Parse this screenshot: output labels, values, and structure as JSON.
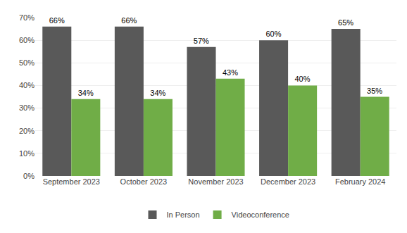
{
  "chart_data": {
    "type": "bar",
    "categories": [
      "September 2023",
      "October 2023",
      "November 2023",
      "December 2023",
      "February 2024"
    ],
    "series": [
      {
        "name": "In Person",
        "color": "#595959",
        "values": [
          0.66,
          0.66,
          0.57,
          0.6,
          0.65
        ],
        "value_labels": [
          "66%",
          "66%",
          "57%",
          "60%",
          "65%"
        ]
      },
      {
        "name": "Videoconference",
        "color": "#70ad47",
        "values": [
          0.34,
          0.34,
          0.43,
          0.4,
          0.35
        ],
        "value_labels": [
          "34%",
          "34%",
          "43%",
          "40%",
          "35%"
        ]
      }
    ],
    "ylim": [
      0,
      0.7
    ],
    "yticks": [
      {
        "value": 0,
        "label": "0%"
      },
      {
        "value": 0.1,
        "label": "10%"
      },
      {
        "value": 0.2,
        "label": "20%"
      },
      {
        "value": 0.3,
        "label": "30%"
      },
      {
        "value": 0.4,
        "label": "40%"
      },
      {
        "value": 0.5,
        "label": "50%"
      },
      {
        "value": 0.6,
        "label": "60%"
      },
      {
        "value": 0.7,
        "label": "70%"
      }
    ],
    "grid": true,
    "legend": "bottom",
    "data_labels": true
  }
}
